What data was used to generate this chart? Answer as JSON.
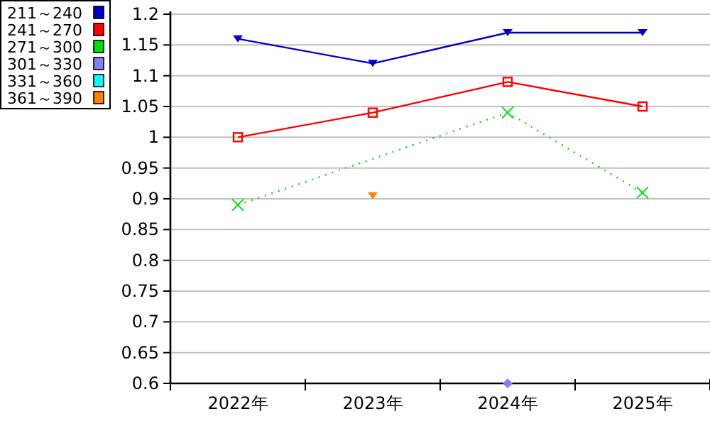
{
  "chart_data": {
    "type": "line",
    "categories": [
      "2022年",
      "2023年",
      "2024年",
      "2025年"
    ],
    "ylim": [
      0.6,
      1.2
    ],
    "yticks": [
      0.6,
      0.65,
      0.7,
      0.75,
      0.8,
      0.85,
      0.9,
      0.95,
      1,
      1.05,
      1.1,
      1.15,
      1.2
    ],
    "grid": "y",
    "legend": "top left",
    "series": [
      {
        "name": "211～240",
        "color": "#0000cc",
        "marker": "triangle",
        "line_style": "solid",
        "values": [
          1.16,
          1.12,
          1.17,
          1.17
        ]
      },
      {
        "name": "241～270",
        "color": "#ff0000",
        "marker": "square",
        "line_style": "solid",
        "values": [
          1.0,
          1.04,
          1.09,
          1.05
        ]
      },
      {
        "name": "271～300",
        "color": "#00dd00",
        "marker": "cross",
        "line_style": "dotted",
        "values": [
          0.89,
          null,
          1.04,
          0.91
        ]
      },
      {
        "name": "301～330",
        "color": "#8080ff",
        "marker": "diamond",
        "line_style": "solid",
        "values": [
          null,
          null,
          0.6,
          null
        ]
      },
      {
        "name": "331～360",
        "color": "#00ffff",
        "marker": "circle",
        "line_style": "solid",
        "values": [
          null,
          null,
          null,
          null
        ]
      },
      {
        "name": "361～390",
        "color": "#ff8000",
        "marker": "triangle",
        "line_style": "solid",
        "values": [
          null,
          0.905,
          null,
          null
        ]
      }
    ]
  }
}
